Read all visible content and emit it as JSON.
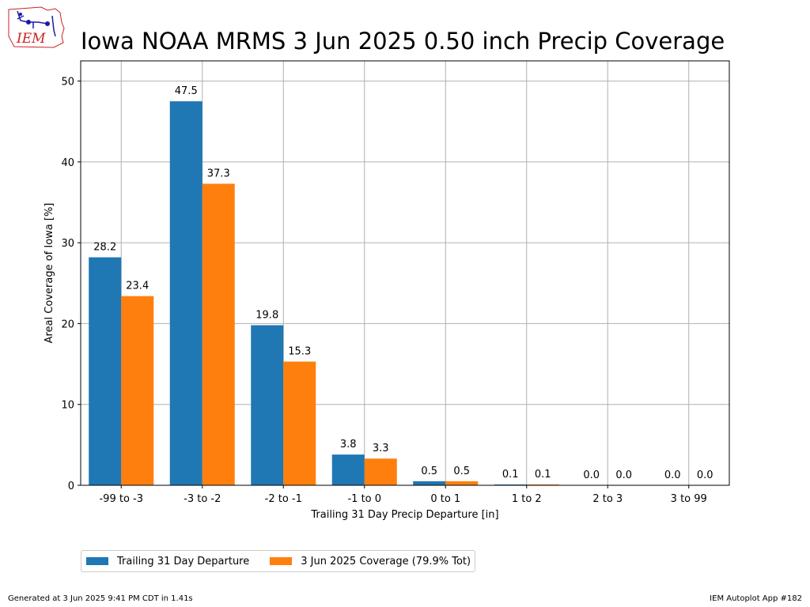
{
  "header": {
    "title": "Iowa NOAA MRMS 3 Jun 2025 0.50 inch Precip Coverage",
    "logo_text": "IEM"
  },
  "footer": {
    "left": "Generated at 3 Jun 2025 9:41 PM CDT in 1.41s",
    "right": "IEM Autoplot App #182"
  },
  "colors": {
    "series1": "#1f77b4",
    "series2": "#ff7f0e",
    "grid": "#b0b0b0",
    "logo": "#1a1aa8",
    "logo_text": "#cc2222"
  },
  "chart_data": {
    "type": "bar",
    "title": "Iowa NOAA MRMS 3 Jun 2025 0.50 inch Precip Coverage",
    "xlabel": "Trailing 31 Day Precip Departure [in]",
    "ylabel": "Areal Coverage of Iowa [%]",
    "ylim": [
      0,
      52.5
    ],
    "yticks": [
      0,
      10,
      20,
      30,
      40,
      50
    ],
    "grid": true,
    "legend_position": "bottom-left, below axes",
    "categories": [
      "-99 to -3",
      "-3 to -2",
      "-2 to -1",
      "-1 to 0",
      "0 to 1",
      "1 to 2",
      "2 to 3",
      "3 to 99"
    ],
    "series": [
      {
        "name": "Trailing 31 Day Departure",
        "values": [
          28.2,
          47.5,
          19.8,
          3.8,
          0.5,
          0.1,
          0.0,
          0.0
        ],
        "labels": [
          "28.2",
          "47.5",
          "19.8",
          "3.8",
          "0.5",
          "0.1",
          "0.0",
          "0.0"
        ]
      },
      {
        "name": "3 Jun 2025 Coverage (79.9% Tot)",
        "values": [
          23.4,
          37.3,
          15.3,
          3.3,
          0.5,
          0.1,
          0.0,
          0.0
        ],
        "labels": [
          "23.4",
          "37.3",
          "15.3",
          "3.3",
          "0.5",
          "0.1",
          "0.0",
          "0.0"
        ]
      }
    ]
  }
}
